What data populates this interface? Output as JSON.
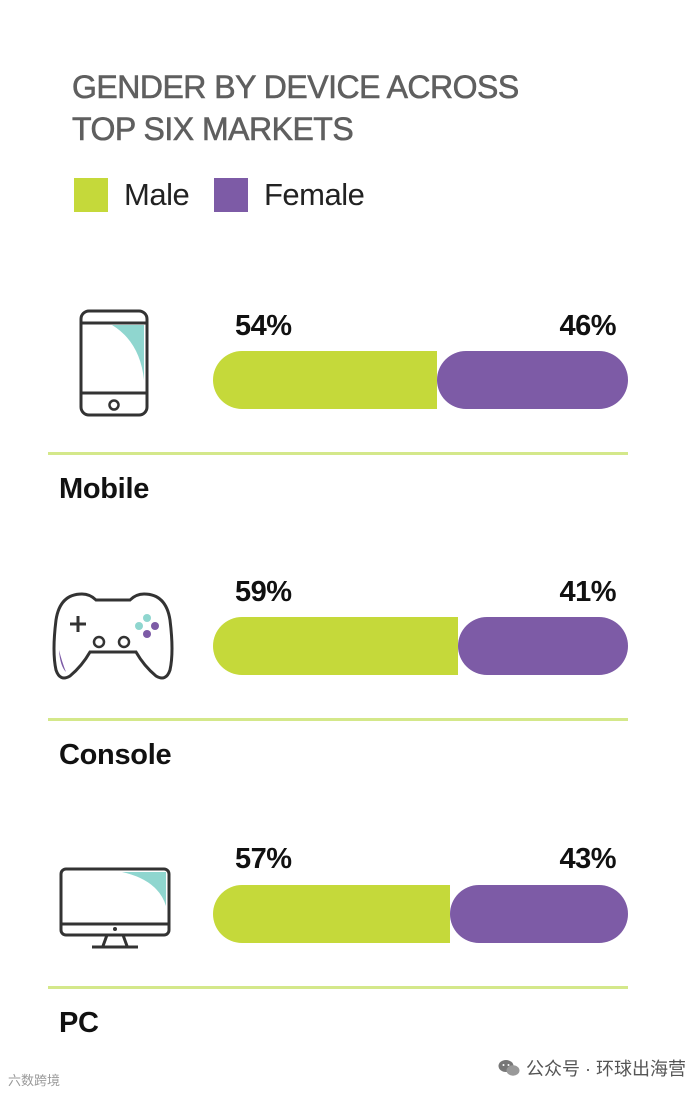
{
  "title_lines": [
    "GENDER BY DEVICE ACROSS",
    "TOP SIX MARKETS"
  ],
  "colors": {
    "male": "#c5d93a",
    "female": "#7d5ba6",
    "divider": "#d4e88a",
    "accent": "#8fd6cf"
  },
  "chart_data": {
    "type": "bar",
    "stacked": true,
    "orientation": "horizontal",
    "title": "GENDER BY DEVICE ACROSS TOP SIX MARKETS",
    "categories": [
      "Mobile",
      "Console",
      "PC"
    ],
    "series": [
      {
        "name": "Male",
        "values": [
          54,
          59,
          57
        ],
        "labels": [
          "54%",
          "59%",
          "57%"
        ]
      },
      {
        "name": "Female",
        "values": [
          46,
          41,
          43
        ],
        "labels": [
          "46%",
          "41%",
          "43%"
        ]
      }
    ],
    "xlim": [
      0,
      100
    ],
    "legend": "top-left",
    "grid": false
  },
  "icons": [
    "mobile-phone-icon",
    "gamepad-icon",
    "monitor-icon"
  ],
  "watermark": {
    "left": "六数跨境",
    "right": "公众号 · 环球出海营"
  }
}
